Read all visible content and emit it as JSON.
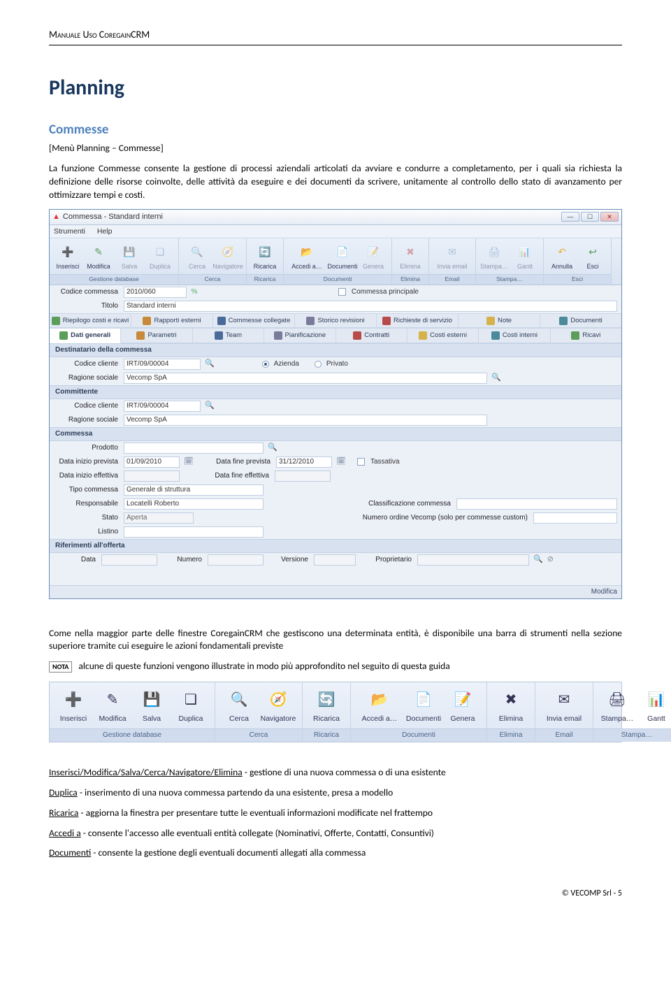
{
  "doc": {
    "header": "Manuale Uso CoregainCRM",
    "h1": "Planning",
    "h2": "Commesse",
    "breadcrumb": "[Menù Planning – Commesse]",
    "intro": "La funzione Commesse consente la gestione di processi aziendali articolati da avviare e condurre a completamento, per i quali sia richiesta la definizione delle risorse coinvolte, delle attività da eseguire e dei documenti da scrivere, unitamente al controllo dello stato di avanzamento per ottimizzare tempi e costi.",
    "mid_p1": "Come nella maggior parte delle finestre CoregainCRM che gestiscono una determinata entità, è disponibile una barra di strumenti nella sezione superiore tramite cui eseguire le azioni fondamentali previste",
    "nota_label": "NOTA",
    "nota_text": "alcune di queste funzioni vengono illustrate in modo più approfondito nel seguito di questa guida",
    "cmds": {
      "c1u": "Inserisci/Modifica/Salva/Cerca/Navigatore/Elimina",
      "c1t": " - gestione di una nuova commessa o di una esistente",
      "c2u": "Duplica",
      "c2t": " - inserimento di una nuova commessa partendo da una esistente, presa a modello",
      "c3u": "Ricarica",
      "c3t": " - aggiorna la finestra per presentare tutte le eventuali informazioni modificate nel frattempo",
      "c4u": "Accedi a",
      "c4t": " - consente l'accesso alle eventuali entità collegate (Nominativi, Offerte, Contatti, Consuntivi)",
      "c5u": "Documenti",
      "c5t": " - consente la gestione degli eventuali documenti allegati alla commessa"
    },
    "footer": "© VECOMP Srl - 5"
  },
  "win": {
    "title": "Commessa - Standard interni",
    "menu": {
      "m1": "Strumenti",
      "m2": "Help"
    },
    "ribbon_groups": [
      {
        "label": "Gestione database",
        "items": [
          {
            "name": "inserisci",
            "label": "Inserisci",
            "ico": "➕",
            "color": "#5a9e5a",
            "enabled": true
          },
          {
            "name": "modifica",
            "label": "Modifica",
            "ico": "✎",
            "color": "#5a9e5a",
            "enabled": true
          },
          {
            "name": "salva",
            "label": "Salva",
            "ico": "💾",
            "color": "#6a88b8",
            "enabled": false
          },
          {
            "name": "duplica",
            "label": "Duplica",
            "ico": "❏",
            "color": "#6a88b8",
            "enabled": false
          }
        ]
      },
      {
        "label": "Cerca",
        "items": [
          {
            "name": "cerca",
            "label": "Cerca",
            "ico": "🔍",
            "color": "#4a6a9a",
            "enabled": false
          },
          {
            "name": "navigatore",
            "label": "Navigatore",
            "ico": "🧭",
            "color": "#4a6a9a",
            "enabled": false
          }
        ]
      },
      {
        "label": "Ricarica",
        "items": [
          {
            "name": "ricarica",
            "label": "Ricarica",
            "ico": "🔄",
            "color": "#5a9e5a",
            "enabled": true
          }
        ]
      },
      {
        "label": "Documenti",
        "items": [
          {
            "name": "accedi-a",
            "label": "Accedi a…",
            "ico": "📂",
            "color": "#5a9e5a",
            "enabled": true,
            "wide": true
          },
          {
            "name": "documenti",
            "label": "Documenti",
            "ico": "📄",
            "color": "#6a88b8",
            "enabled": true
          },
          {
            "name": "genera",
            "label": "Genera",
            "ico": "📝",
            "color": "#6a88b8",
            "enabled": false
          }
        ]
      },
      {
        "label": "Elimina",
        "items": [
          {
            "name": "elimina",
            "label": "Elimina",
            "ico": "✖",
            "color": "#c05050",
            "enabled": false
          }
        ]
      },
      {
        "label": "Email",
        "items": [
          {
            "name": "invia-email",
            "label": "Invia email",
            "ico": "✉",
            "color": "#6a88b8",
            "enabled": false,
            "wide": true
          }
        ]
      },
      {
        "label": "Stampa…",
        "items": [
          {
            "name": "stampa",
            "label": "Stampa…",
            "ico": "🖨",
            "color": "#6a88b8",
            "enabled": false
          },
          {
            "name": "gantt",
            "label": "Gantt",
            "ico": "📊",
            "color": "#6a88b8",
            "enabled": false
          }
        ]
      },
      {
        "label": "Esci",
        "items": [
          {
            "name": "annulla",
            "label": "Annulla",
            "ico": "↶",
            "color": "#e7b23c",
            "enabled": true
          },
          {
            "name": "esci",
            "label": "Esci",
            "ico": "↩",
            "color": "#5a9e5a",
            "enabled": true
          }
        ]
      }
    ],
    "head_fields": {
      "codice_lbl": "Codice commessa",
      "codice_val": "2010/060",
      "principale_lbl": "Commessa principale",
      "titolo_lbl": "Titolo",
      "titolo_val": "Standard interni"
    },
    "tabs_row1": [
      {
        "label": "Riepilogo costi e ricavi",
        "color": "#5a9e5a"
      },
      {
        "label": "Rapporti esterni",
        "color": "#c78a3a"
      },
      {
        "label": "Commesse collegate",
        "color": "#4a6a9a"
      },
      {
        "label": "Storico revisioni",
        "color": "#7a7a9a"
      },
      {
        "label": "Richieste di servizio",
        "color": "#b84a4a"
      },
      {
        "label": "Note",
        "color": "#d6b24a"
      },
      {
        "label": "Documenti",
        "color": "#4a8a9a"
      }
    ],
    "tabs_row2": [
      {
        "label": "Dati generali",
        "color": "#5a9e5a",
        "active": true
      },
      {
        "label": "Parametri",
        "color": "#c78a3a"
      },
      {
        "label": "Team",
        "color": "#4a6a9a"
      },
      {
        "label": "Pianificazione",
        "color": "#7a7a9a"
      },
      {
        "label": "Contratti",
        "color": "#b84a4a"
      },
      {
        "label": "Costi esterni",
        "color": "#d6b24a"
      },
      {
        "label": "Costi interni",
        "color": "#4a8a9a"
      },
      {
        "label": "Ricavi",
        "color": "#5a9e5a"
      }
    ],
    "sections": {
      "destinatario": {
        "title": "Destinatario della commessa",
        "codice_lbl": "Codice cliente",
        "codice_val": "IRT/09/00004",
        "azienda_lbl": "Azienda",
        "privato_lbl": "Privato",
        "ragione_lbl": "Ragione sociale",
        "ragione_val": "Vecomp SpA"
      },
      "committente": {
        "title": "Committente",
        "codice_lbl": "Codice cliente",
        "codice_val": "IRT/09/00004",
        "ragione_lbl": "Ragione sociale",
        "ragione_val": "Vecomp SpA"
      },
      "commessa": {
        "title": "Commessa",
        "prodotto_lbl": "Prodotto",
        "data_inizio_p_lbl": "Data inizio prevista",
        "data_inizio_p_val": "01/09/2010",
        "data_fine_p_lbl": "Data fine prevista",
        "data_fine_p_val": "31/12/2010",
        "tassativa_lbl": "Tassativa",
        "data_inizio_e_lbl": "Data inizio effettiva",
        "data_fine_e_lbl": "Data fine effettiva",
        "tipo_lbl": "Tipo commessa",
        "tipo_val": "Generale di struttura",
        "resp_lbl": "Responsabile",
        "resp_val": "Locatelli Roberto",
        "classif_lbl": "Classificazione commessa",
        "stato_lbl": "Stato",
        "stato_val": "Aperta",
        "ordine_lbl": "Numero ordine Vecomp (solo per commesse custom)",
        "listino_lbl": "Listino"
      },
      "riferimenti": {
        "title": "Riferimenti all'offerta",
        "data_lbl": "Data",
        "numero_lbl": "Numero",
        "versione_lbl": "Versione",
        "proprietario_lbl": "Proprietario"
      }
    },
    "statusbar": "Modifica"
  },
  "toolbar": {
    "groups": [
      {
        "label": "Gestione database",
        "items": [
          {
            "name": "inserisci",
            "label": "Inserisci",
            "ico": "➕"
          },
          {
            "name": "modifica",
            "label": "Modifica",
            "ico": "✎"
          },
          {
            "name": "salva",
            "label": "Salva",
            "ico": "💾"
          },
          {
            "name": "duplica",
            "label": "Duplica",
            "ico": "❏"
          }
        ]
      },
      {
        "label": "Cerca",
        "items": [
          {
            "name": "cerca",
            "label": "Cerca",
            "ico": "🔍"
          },
          {
            "name": "navigatore",
            "label": "Navigatore",
            "ico": "🧭"
          }
        ]
      },
      {
        "label": "Ricarica",
        "items": [
          {
            "name": "ricarica",
            "label": "Ricarica",
            "ico": "🔄"
          }
        ]
      },
      {
        "label": "Documenti",
        "items": [
          {
            "name": "accedi-a",
            "label": "Accedi a…",
            "ico": "📂",
            "wide": true
          },
          {
            "name": "documenti",
            "label": "Documenti",
            "ico": "📄"
          },
          {
            "name": "genera",
            "label": "Genera",
            "ico": "📝"
          }
        ]
      },
      {
        "label": "Elimina",
        "items": [
          {
            "name": "elimina",
            "label": "Elimina",
            "ico": "✖"
          }
        ]
      },
      {
        "label": "Email",
        "items": [
          {
            "name": "invia-email",
            "label": "Invia email",
            "ico": "✉",
            "wide": true
          }
        ]
      },
      {
        "label": "Stampa…",
        "items": [
          {
            "name": "stampa",
            "label": "Stampa…",
            "ico": "🖨"
          },
          {
            "name": "gantt",
            "label": "Gantt",
            "ico": "📊"
          }
        ]
      },
      {
        "label": "Esci",
        "items": [
          {
            "name": "annulla",
            "label": "Annulla",
            "ico": "↶"
          },
          {
            "name": "esci",
            "label": "Esci",
            "ico": "↩"
          }
        ]
      }
    ]
  }
}
